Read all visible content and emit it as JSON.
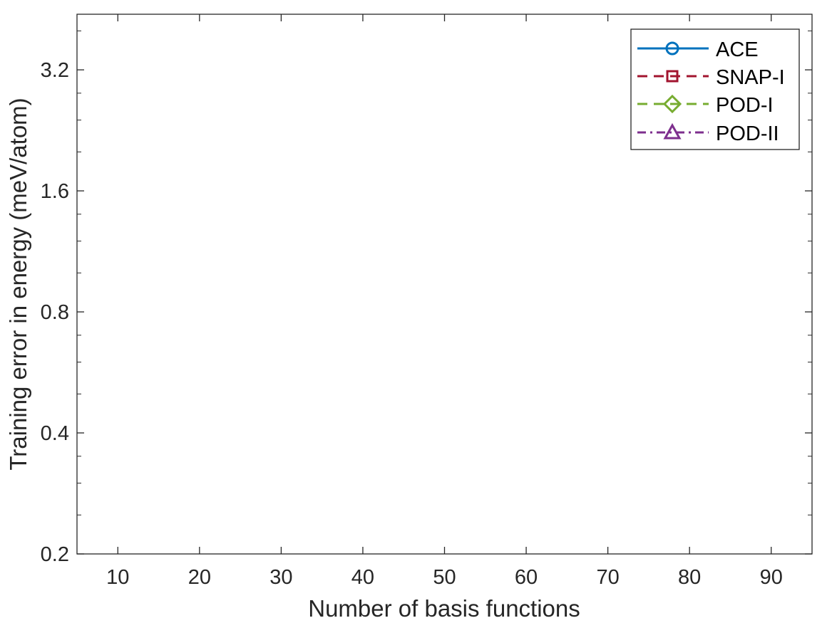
{
  "chart_data": {
    "type": "line",
    "title": "",
    "xlabel": "Number of basis functions",
    "ylabel": "Training error in energy (meV/atom)",
    "xlim": [
      5,
      95
    ],
    "ylim": [
      0.2,
      4.4
    ],
    "yscale": "log2",
    "xticks": [
      10,
      20,
      30,
      40,
      50,
      60,
      70,
      80,
      90
    ],
    "xtick_labels": [
      "10",
      "20",
      "30",
      "40",
      "50",
      "60",
      "70",
      "80",
      "90"
    ],
    "yticks": [
      0.2,
      0.4,
      0.8,
      1.6,
      3.2
    ],
    "ytick_labels": [
      "0.2",
      "0.4",
      "0.8",
      "1.6",
      "3.2"
    ],
    "grid": false,
    "legend_position": "top-right",
    "series": [
      {
        "name": "ACE",
        "color": "#0072BD",
        "line_style": "solid",
        "marker": "circle",
        "x": [],
        "y": []
      },
      {
        "name": "SNAP-I",
        "color": "#A2142F",
        "line_style": "dashed",
        "marker": "square",
        "x": [],
        "y": []
      },
      {
        "name": "POD-I",
        "color": "#77AC30",
        "line_style": "dashed",
        "marker": "diamond",
        "x": [],
        "y": []
      },
      {
        "name": "POD-II",
        "color": "#7E2F8E",
        "line_style": "dashdot",
        "marker": "triangle",
        "x": [],
        "y": []
      }
    ]
  }
}
